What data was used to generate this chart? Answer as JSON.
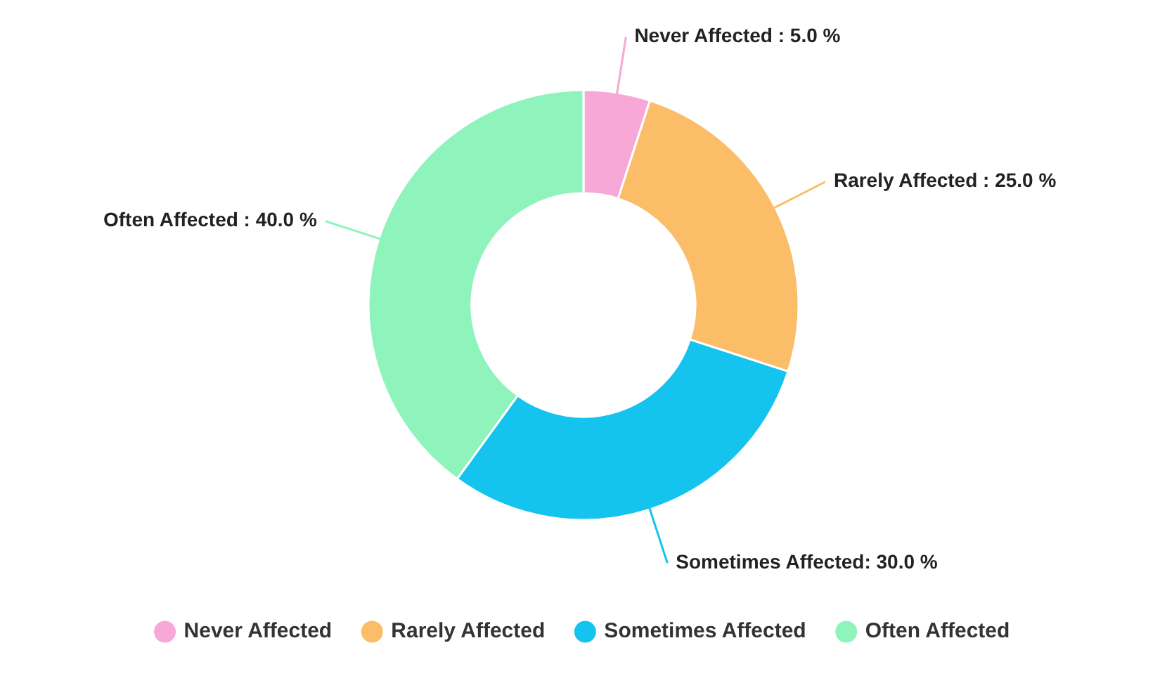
{
  "chart_data": {
    "type": "donut",
    "categories": [
      "Never Affected",
      "Rarely Affected",
      "Sometimes Affected",
      "Often Affected"
    ],
    "values": [
      5.0,
      25.0,
      30.0,
      40.0
    ],
    "colors": [
      "#f7a8d6",
      "#fbbd68",
      "#14c3ee",
      "#8ef4bc"
    ],
    "value_labels": [
      "Never Affected : 5.0 %",
      "Rarely Affected : 25.0 %",
      "Sometimes Affected: 30.0 %",
      "Often Affected : 40.0 %"
    ],
    "legend": "bottom"
  }
}
